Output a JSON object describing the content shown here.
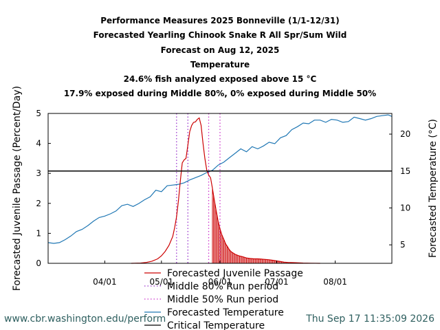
{
  "chart_data": {
    "type": "line",
    "title_lines": [
      "Performance Measures 2025 Bonneville (1/1-12/31)",
      "Forecasted Yearling Chinook Snake R All Spr/Sum Wild",
      "Forecast on Aug 12, 2025",
      "Temperature",
      "24.6% fish analyzed exposed above 15 °C",
      "17.9% exposed during Middle 80%, 0% exposed during Middle 50%"
    ],
    "ylabel_left": "Forecasted Juvenile Passage (Percent/Day)",
    "ylabel_right": "Forecasted Temperature (°C)",
    "x_ticks": [
      {
        "label": "04/01",
        "doy": 91
      },
      {
        "label": "05/01",
        "doy": 121
      },
      {
        "label": "06/01",
        "doy": 152
      },
      {
        "label": "07/01",
        "doy": 182
      },
      {
        "label": "08/01",
        "doy": 213
      }
    ],
    "x_range_doy": [
      61,
      243
    ],
    "ylim_left": [
      0,
      5
    ],
    "y_ticks_left": [
      0,
      1,
      2,
      3,
      4,
      5
    ],
    "ylim_right": [
      2.5,
      22.8
    ],
    "y_ticks_right": [
      5,
      10,
      15,
      20
    ],
    "critical_temperature": 15,
    "middle80_doy": [
      129,
      135
    ],
    "middle50_doy": [
      146,
      152
    ],
    "passage": {
      "name": "Forecasted Juvenile Passage",
      "color": "#cc0000",
      "doy": [
        105,
        110,
        113,
        116,
        119,
        121,
        123,
        125,
        127,
        128,
        129,
        130,
        131,
        132,
        133,
        134,
        135,
        136,
        137,
        138,
        139,
        140,
        141,
        142,
        143,
        144,
        145,
        146,
        147,
        148,
        149,
        150,
        151,
        152,
        153,
        154,
        155,
        156,
        157,
        158,
        160,
        162,
        164,
        166,
        168,
        170,
        172,
        174,
        176,
        178,
        180,
        182,
        184,
        186,
        188,
        192,
        196,
        200,
        205
      ],
      "values": [
        0,
        0.01,
        0.03,
        0.07,
        0.15,
        0.25,
        0.4,
        0.6,
        0.9,
        1.2,
        1.55,
        2.1,
        2.75,
        3.35,
        3.45,
        3.5,
        3.95,
        4.4,
        4.6,
        4.7,
        4.72,
        4.8,
        4.85,
        4.6,
        4.0,
        3.5,
        3.1,
        2.95,
        2.85,
        2.5,
        2.1,
        1.75,
        1.4,
        1.15,
        0.95,
        0.8,
        0.65,
        0.55,
        0.45,
        0.38,
        0.3,
        0.25,
        0.22,
        0.18,
        0.16,
        0.15,
        0.15,
        0.14,
        0.13,
        0.12,
        0.1,
        0.08,
        0.06,
        0.04,
        0.03,
        0.02,
        0.01,
        0.005,
        0
      ]
    },
    "temperature": {
      "name": "Forecasted Temperature",
      "color": "#1f77b4",
      "doy": [
        61,
        64,
        67,
        70,
        73,
        76,
        79,
        82,
        85,
        88,
        91,
        94,
        97,
        100,
        103,
        106,
        109,
        112,
        115,
        118,
        121,
        124,
        127,
        130,
        133,
        136,
        139,
        142,
        145,
        148,
        151,
        154,
        157,
        160,
        163,
        166,
        169,
        172,
        175,
        178,
        181,
        184,
        187,
        190,
        193,
        196,
        199,
        202,
        205,
        208,
        211,
        214,
        217,
        220,
        223,
        226,
        229,
        232,
        235,
        238,
        241,
        243
      ],
      "values": [
        5.3,
        5.2,
        5.3,
        5.7,
        6.2,
        6.8,
        7.1,
        7.6,
        8.2,
        8.7,
        8.9,
        9.2,
        9.6,
        10.3,
        10.5,
        10.2,
        10.6,
        11.1,
        11.5,
        12.4,
        12.2,
        13.0,
        13.1,
        13.2,
        13.4,
        13.8,
        14.1,
        14.4,
        14.8,
        15.1,
        15.8,
        16.2,
        16.8,
        17.4,
        18.0,
        17.6,
        18.3,
        18.0,
        18.4,
        18.9,
        18.7,
        19.5,
        19.8,
        20.6,
        21.0,
        21.5,
        21.4,
        21.9,
        21.9,
        21.6,
        22.0,
        21.9,
        21.6,
        21.7,
        22.3,
        22.1,
        21.9,
        22.1,
        22.4,
        22.5,
        22.6,
        22.4
      ]
    },
    "legend": {
      "placement": "bottom",
      "entries": [
        {
          "label": "Forecasted Juvenile Passage",
          "color": "#cc0000",
          "style": "solid"
        },
        {
          "label": "Middle 80% Run period",
          "color": "#9933cc",
          "style": "dotted"
        },
        {
          "label": "Middle 50% Run period",
          "color": "#cc33cc",
          "style": "dotted"
        },
        {
          "label": "Forecasted Temperature",
          "color": "#1f77b4",
          "style": "solid"
        },
        {
          "label": "Critical Temperature",
          "color": "#000000",
          "style": "solid"
        }
      ]
    }
  },
  "footer": {
    "url": "www.cbr.washington.edu/perform",
    "timestamp": "Thu Sep 17 11:35:09 2026"
  }
}
